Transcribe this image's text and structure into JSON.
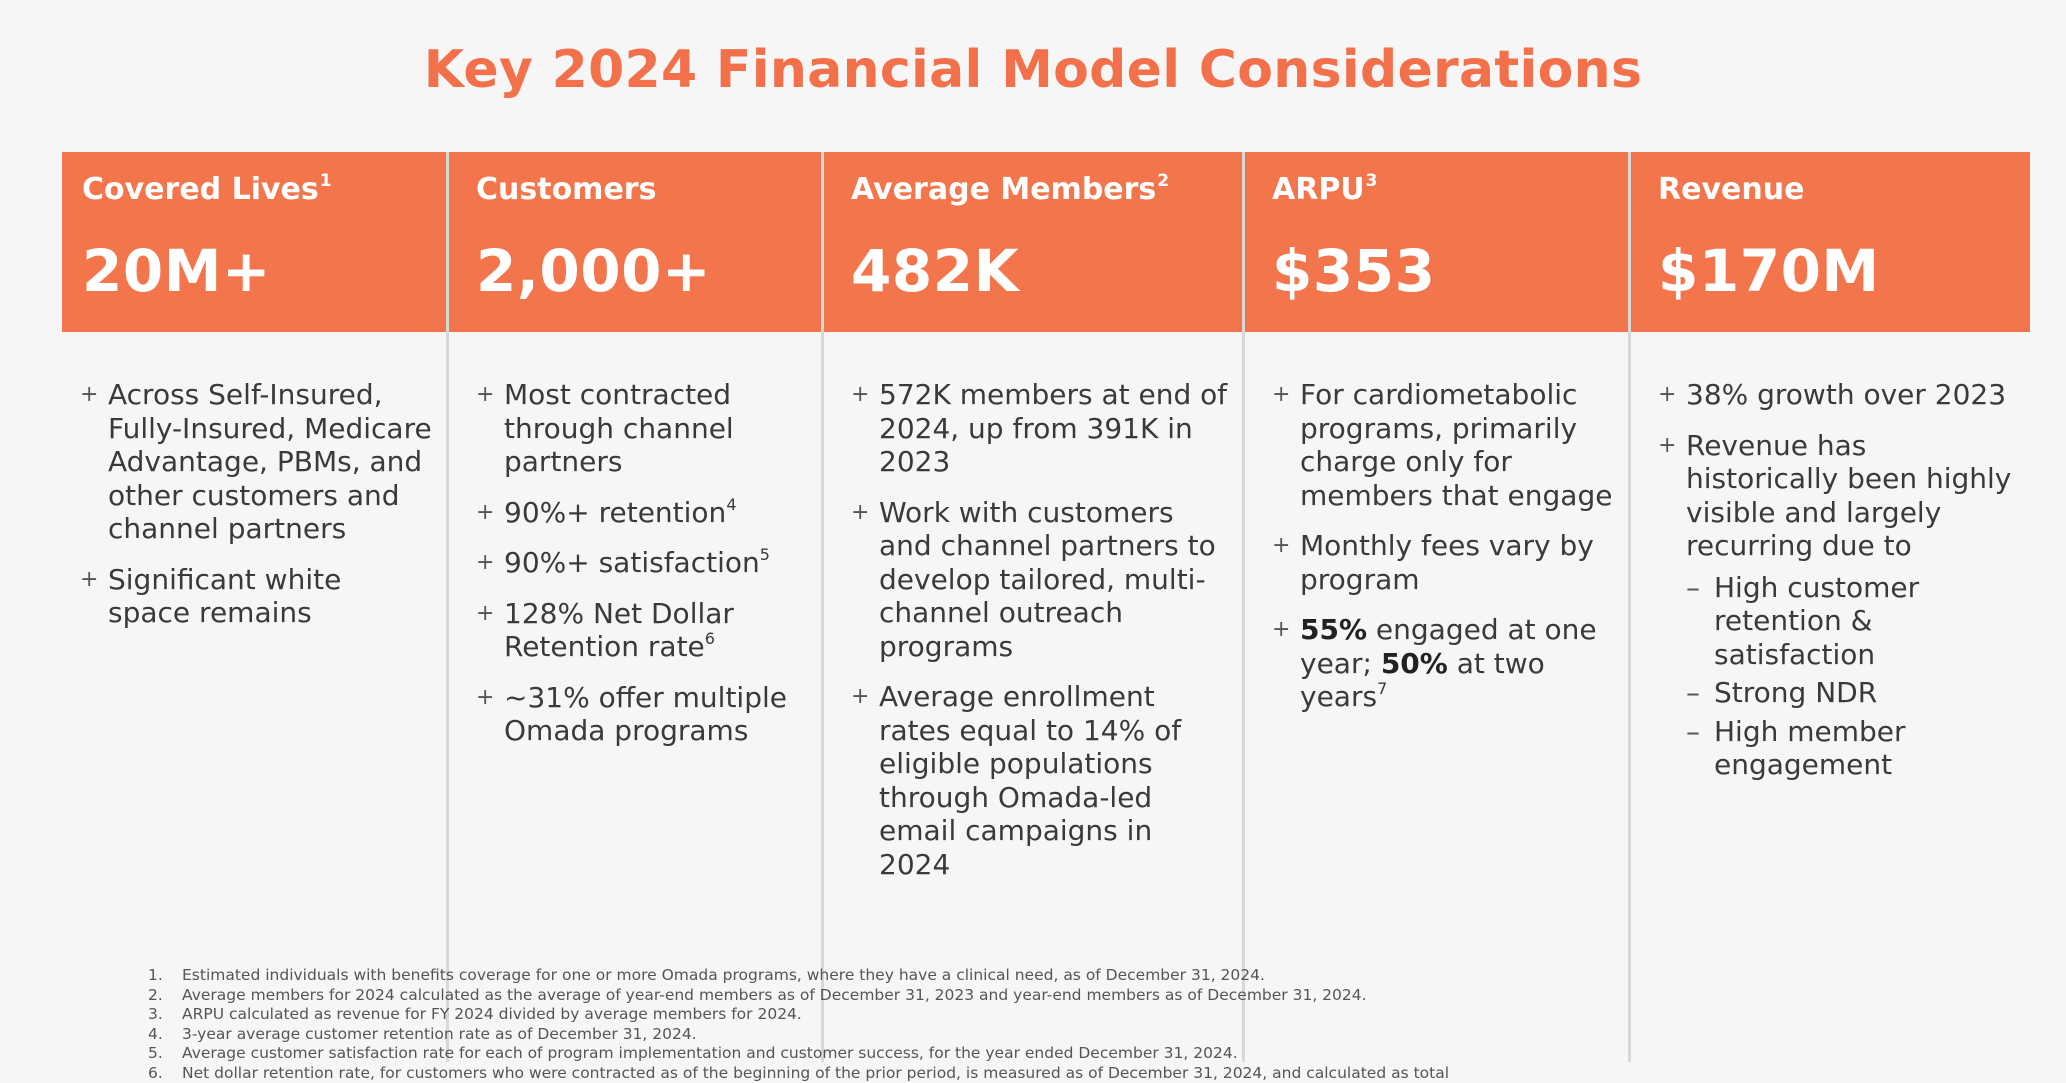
{
  "title": "Key 2024 Financial Model Considerations",
  "columns": [
    {
      "label": "Covered Lives",
      "sup": "1",
      "value": "20M+",
      "bullets": [
        {
          "text": "Across Self-Insured, Fully-Insured, Medicare Advantage, PBMs, and other customers and channel partners"
        },
        {
          "text": "Significant white space remains"
        }
      ]
    },
    {
      "label": "Customers",
      "sup": "",
      "value": "2,000+",
      "bullets": [
        {
          "text": "Most contracted through channel partners"
        },
        {
          "text": "90%+ retention",
          "sup": "4"
        },
        {
          "text": "90%+ satisfaction",
          "sup": "5"
        },
        {
          "text": "128% Net Dollar Retention rate",
          "sup": "6"
        },
        {
          "text": "~31% offer multiple Omada programs"
        }
      ]
    },
    {
      "label": "Average Members",
      "sup": "2",
      "value": "482K",
      "bullets": [
        {
          "text": "572K members at end of 2024, up from 391K in 2023"
        },
        {
          "text": "Work with customers and channel partners to develop tailored, multi-channel outreach programs"
        },
        {
          "text": "Average enrollment rates equal to 14% of eligible populations through Omada-led email campaigns in 2024"
        }
      ]
    },
    {
      "label": "ARPU",
      "sup": "3",
      "value": "$353",
      "bullets": [
        {
          "text": "For cardiometabolic programs, primarily charge only for members that engage"
        },
        {
          "text": "Monthly fees vary by program"
        },
        {
          "bold1": "55%",
          "text1": " engaged at one year; ",
          "bold2": "50%",
          "text2": " at two years",
          "sup": "7"
        }
      ]
    },
    {
      "label": "Revenue",
      "sup": "",
      "value": "$170M",
      "bullets": [
        {
          "text": "38% growth over 2023"
        },
        {
          "text": "Revenue has historically been highly visible and largely recurring due to",
          "sub": [
            "High customer retention & satisfaction",
            "Strong NDR",
            "High member engagement"
          ]
        }
      ]
    }
  ],
  "footnotes": [
    {
      "num": "1.",
      "text": "Estimated individuals with benefits coverage for one or more Omada programs, where they have a clinical need, as of December 31, 2024."
    },
    {
      "num": "2.",
      "text": "Average members for 2024 calculated as the average of year-end members as of December 31, 2023 and year-end members as of December 31, 2024."
    },
    {
      "num": "3.",
      "text": "ARPU calculated as revenue for FY 2024 divided by average members for 2024."
    },
    {
      "num": "4.",
      "text": "3-year average customer retention rate as of December 31, 2024."
    },
    {
      "num": "5.",
      "text": "Average customer satisfaction rate for each of program implementation and customer success, for the year ended December 31, 2024."
    },
    {
      "num": "6.",
      "text": "Net dollar retention rate, for customers who were contracted as of the beginning of the prior period, is measured as of December 31, 2024, and calculated as total"
    }
  ],
  "colors": {
    "accent": "#f2704a",
    "header_bg": "#f2754b",
    "page_bg": "#f6f6f6",
    "text": "#3a3a3a",
    "divider": "#d8d8d8"
  },
  "icons": {
    "bullet": "plus-icon",
    "sub_bullet": "dash-icon"
  }
}
